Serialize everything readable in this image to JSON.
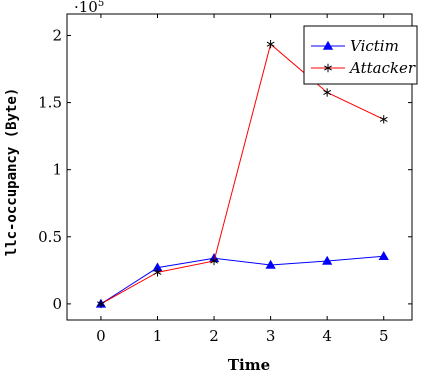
{
  "chart_data": {
    "type": "line",
    "xlabel": "Time",
    "ylabel": "llc-occupancy (Byte)",
    "x": [
      0,
      1,
      2,
      3,
      4,
      5
    ],
    "xlim": [
      -0.6,
      5.5
    ],
    "ylim": [
      -0.12,
      2.16
    ],
    "y_multiplier": "·10",
    "y_multiplier_exp": "5",
    "x_ticks": [
      "0",
      "1",
      "2",
      "3",
      "4",
      "5"
    ],
    "y_ticks": [
      {
        "value": 0,
        "label": "0"
      },
      {
        "value": 0.5,
        "label": "0.5"
      },
      {
        "value": 1,
        "label": "1"
      },
      {
        "value": 1.5,
        "label": "1.5"
      },
      {
        "value": 2,
        "label": "2"
      }
    ],
    "grid": false,
    "legend_position": "top-right",
    "series": [
      {
        "name": "Victim",
        "color": "#0000ff",
        "marker": "triangle",
        "values": [
          0.0,
          0.27,
          0.34,
          0.29,
          0.32,
          0.355
        ]
      },
      {
        "name": "Attacker",
        "color": "#ff0000",
        "marker": "star",
        "values": [
          0.0,
          0.235,
          0.32,
          1.935,
          1.575,
          1.375
        ]
      }
    ]
  }
}
